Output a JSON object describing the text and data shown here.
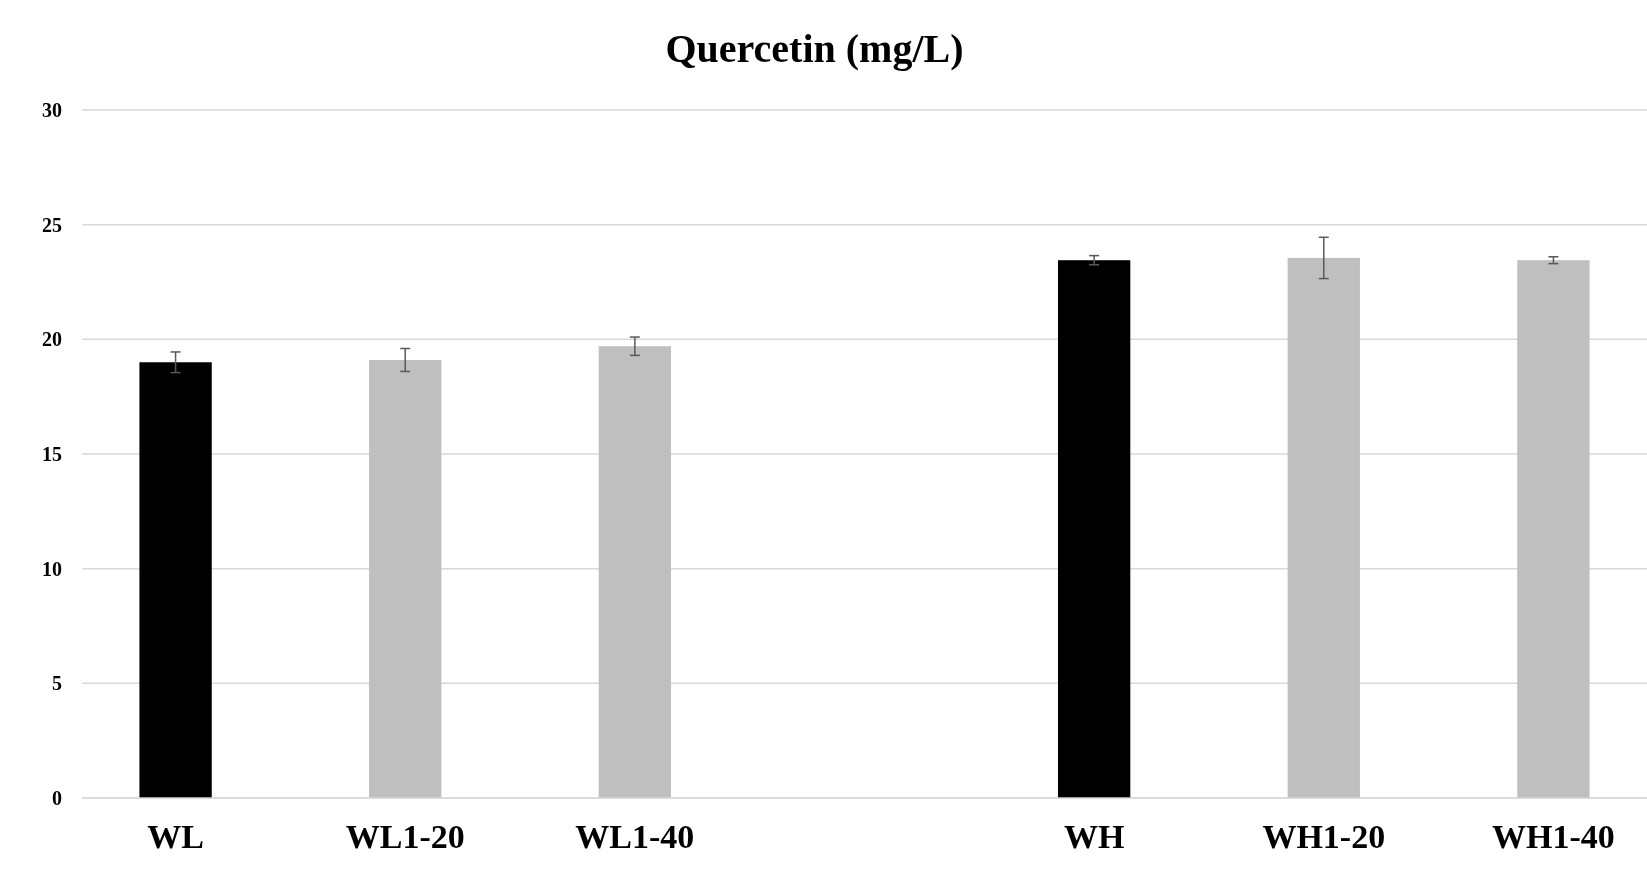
{
  "chart_data": {
    "type": "bar",
    "title": "Quercetin (mg/L)",
    "categories": [
      "WL",
      "WL1-20",
      "WL1-40",
      null,
      "WH",
      "WH1-20",
      "WH1-40"
    ],
    "values": [
      19.0,
      19.1,
      19.7,
      null,
      23.45,
      23.55,
      23.45
    ],
    "errors": [
      0.45,
      0.5,
      0.4,
      null,
      0.2,
      0.9,
      0.15
    ],
    "colors": [
      "#000000",
      "#bfbfbf",
      "#bfbfbf",
      null,
      "#000000",
      "#bfbfbf",
      "#bfbfbf"
    ],
    "ylim": [
      0,
      30
    ],
    "yticks": [
      0,
      5,
      10,
      15,
      20,
      25,
      30
    ],
    "grid": "y"
  }
}
